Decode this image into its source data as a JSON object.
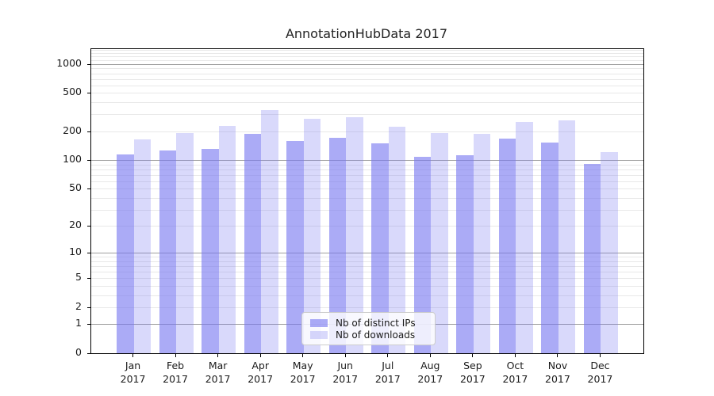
{
  "title": "AnnotationHubData 2017",
  "colors": {
    "ips_bar": "rgba(120,120,240,0.62)",
    "downloads_bar": "rgba(120,120,240,0.28)",
    "grid_major": "#9e9e9e",
    "grid_minor": "#e8e8e8",
    "axis_line": "#000000",
    "text": "#1a1a1a",
    "legend_border": "#cccccc",
    "legend_bg": "rgba(255,255,255,0.8)"
  },
  "legend": {
    "items": [
      {
        "label": "Nb of distinct IPs",
        "color_key": "ips_bar"
      },
      {
        "label": "Nb of downloads",
        "color_key": "downloads_bar"
      }
    ]
  },
  "chart_data": {
    "type": "bar",
    "title": "AnnotationHubData 2017",
    "y_scale": "log1p",
    "ylim": [
      0,
      1430
    ],
    "y_ticks": [
      0,
      1,
      2,
      5,
      10,
      20,
      50,
      100,
      200,
      500,
      1000
    ],
    "grid": "horizontal; dark lines at 1/10/100/1000, light minor lines at 2-9 multiples",
    "legend_position": "lower center",
    "categories": [
      {
        "month": "Jan",
        "year": "2017"
      },
      {
        "month": "Feb",
        "year": "2017"
      },
      {
        "month": "Mar",
        "year": "2017"
      },
      {
        "month": "Apr",
        "year": "2017"
      },
      {
        "month": "May",
        "year": "2017"
      },
      {
        "month": "Jun",
        "year": "2017"
      },
      {
        "month": "Jul",
        "year": "2017"
      },
      {
        "month": "Aug",
        "year": "2017"
      },
      {
        "month": "Sep",
        "year": "2017"
      },
      {
        "month": "Oct",
        "year": "2017"
      },
      {
        "month": "Nov",
        "year": "2017"
      },
      {
        "month": "Dec",
        "year": "2017"
      }
    ],
    "series": [
      {
        "name": "Nb of distinct IPs",
        "color_key": "ips_bar",
        "values": [
          114,
          127,
          132,
          188,
          159,
          172,
          150,
          109,
          112,
          166,
          152,
          91
        ]
      },
      {
        "name": "Nb of downloads",
        "color_key": "downloads_bar",
        "values": [
          165,
          190,
          229,
          333,
          268,
          278,
          222,
          192,
          187,
          248,
          261,
          122
        ]
      }
    ]
  }
}
